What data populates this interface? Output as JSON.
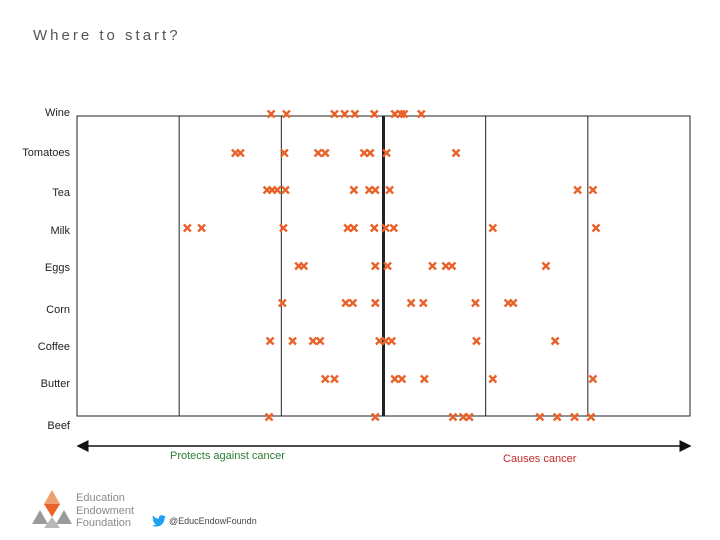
{
  "title": "Where to start?",
  "axis": {
    "left_label": "Protects against cancer",
    "right_label": "Causes cancer"
  },
  "branding": {
    "org_lines": [
      "Education",
      "Endowment",
      "Foundation"
    ],
    "handle": "@EducEndowFoundn"
  },
  "colors": {
    "marker": "#e8622a",
    "grid": "#222222",
    "left_arrow": "#2e7d32",
    "right_arrow": "#c62828",
    "twitter": "#1da1f2"
  },
  "chart_data": {
    "type": "scatter",
    "marker": "x",
    "xlim": [
      -3,
      3
    ],
    "center_line": 0,
    "categories": [
      "Wine",
      "Tomatoes",
      "Tea",
      "Milk",
      "Eggs",
      "Corn",
      "Coffee",
      "Butter",
      "Beef"
    ],
    "series": [
      {
        "category": "Wine",
        "x": [
          -1.1,
          -0.95,
          -0.48,
          -0.38,
          -0.28,
          -0.09,
          0.11,
          0.17,
          0.2,
          0.37
        ]
      },
      {
        "category": "Tomatoes",
        "x": [
          -1.45,
          -1.4,
          -0.97,
          -0.64,
          -0.57,
          -0.19,
          -0.13,
          0.03,
          0.71
        ]
      },
      {
        "category": "Tea",
        "x": [
          -1.14,
          -1.09,
          -1.04,
          -0.96,
          -0.29,
          -0.14,
          -0.08,
          0.06,
          1.9,
          2.05
        ]
      },
      {
        "category": "Milk",
        "x": [
          -1.92,
          -1.78,
          -0.98,
          -0.35,
          -0.29,
          -0.09,
          0.02,
          0.1,
          1.07,
          2.08
        ]
      },
      {
        "category": "Eggs",
        "x": [
          -0.83,
          -0.78,
          -0.08,
          0.04,
          0.48,
          0.61,
          0.67,
          1.59
        ]
      },
      {
        "category": "Corn",
        "x": [
          -0.99,
          -0.37,
          -0.3,
          -0.08,
          0.27,
          0.39,
          0.9,
          1.22,
          1.27
        ]
      },
      {
        "category": "Coffee",
        "x": [
          -1.11,
          -0.89,
          -0.69,
          -0.62,
          -0.04,
          0.02,
          0.08,
          0.91,
          1.68
        ]
      },
      {
        "category": "Butter",
        "x": [
          -0.57,
          -0.48,
          0.11,
          0.18,
          0.4,
          1.07,
          2.05
        ]
      },
      {
        "category": "Beef",
        "x": [
          -1.12,
          -0.08,
          0.68,
          0.78,
          0.84,
          1.53,
          1.7,
          1.87,
          2.03
        ]
      }
    ]
  }
}
